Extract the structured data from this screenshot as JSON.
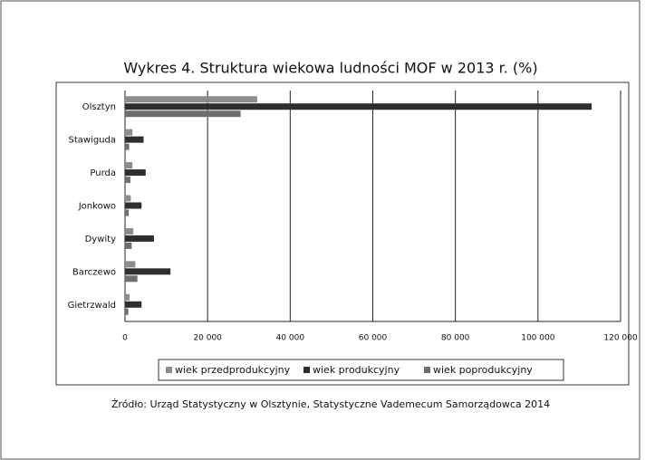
{
  "chart_data": {
    "type": "bar",
    "orientation": "horizontal",
    "title": "Wykres 4. Struktura wiekowa ludności MOF w 2013 r. (%)",
    "source": "Źródło: Urząd Statystyczny w Olsztynie, Statystyczne Vademecum Samorządowca 2014",
    "categories": [
      "Olsztyn",
      "Stawiguda",
      "Purda",
      "Jonkowo",
      "Dywity",
      "Barczewo",
      "Gietrzwald"
    ],
    "series": [
      {
        "name": "wiek przedprodukcyjny",
        "color": "#8c8c8c",
        "values": [
          32000,
          1800,
          1800,
          1400,
          2000,
          2500,
          1100
        ]
      },
      {
        "name": "wiek produkcyjny",
        "color": "#2e2e2e",
        "values": [
          113000,
          4500,
          5000,
          4000,
          7000,
          11000,
          4000
        ]
      },
      {
        "name": "wiek poprodukcyjny",
        "color": "#6e6e6e",
        "values": [
          28000,
          1000,
          1300,
          900,
          1600,
          3000,
          800
        ]
      }
    ],
    "xlim": [
      0,
      120000
    ],
    "xticks": [
      0,
      {
        "value": 20000,
        "label": "20 000"
      },
      {
        "value": 40000,
        "label": "40 000"
      },
      {
        "value": 60000,
        "label": "60 000"
      },
      {
        "value": 80000,
        "label": "80 000"
      },
      {
        "value": 100000,
        "label": "100 000"
      },
      {
        "value": 120000,
        "label": "120 000"
      }
    ],
    "grid": true,
    "legend": "bottom"
  }
}
